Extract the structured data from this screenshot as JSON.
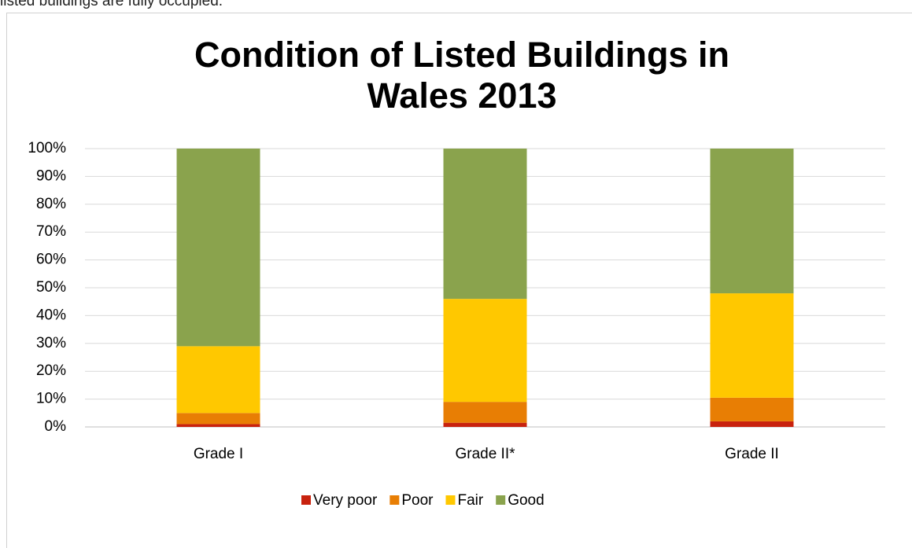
{
  "page_text": "listed buildings are fully occupied.",
  "chart_data": {
    "type": "stacked_bar",
    "title": "Condition of Listed Buildings in Wales 2013",
    "categories": [
      "Grade I",
      "Grade II*",
      "Grade II"
    ],
    "series": [
      {
        "name": "Very poor",
        "color": "#c8220e",
        "values": [
          1,
          1.5,
          2
        ]
      },
      {
        "name": "Poor",
        "color": "#e87e04",
        "values": [
          4,
          7.5,
          8.5
        ]
      },
      {
        "name": "Fair",
        "color": "#ffc800",
        "values": [
          24,
          37,
          37.5
        ]
      },
      {
        "name": "Good",
        "color": "#8aa34d",
        "values": [
          71,
          54,
          52
        ]
      }
    ],
    "ylim": [
      0,
      100
    ],
    "yticks": [
      {
        "value": 0,
        "label": "0%"
      },
      {
        "value": 10,
        "label": "10%"
      },
      {
        "value": 20,
        "label": "20%"
      },
      {
        "value": 30,
        "label": "30%"
      },
      {
        "value": 40,
        "label": "40%"
      },
      {
        "value": 50,
        "label": "50%"
      },
      {
        "value": 60,
        "label": "60%"
      },
      {
        "value": 70,
        "label": "70%"
      },
      {
        "value": 80,
        "label": "80%"
      },
      {
        "value": 90,
        "label": "90%"
      },
      {
        "value": 100,
        "label": "100%"
      }
    ],
    "grid": true,
    "legend": "bottom"
  }
}
